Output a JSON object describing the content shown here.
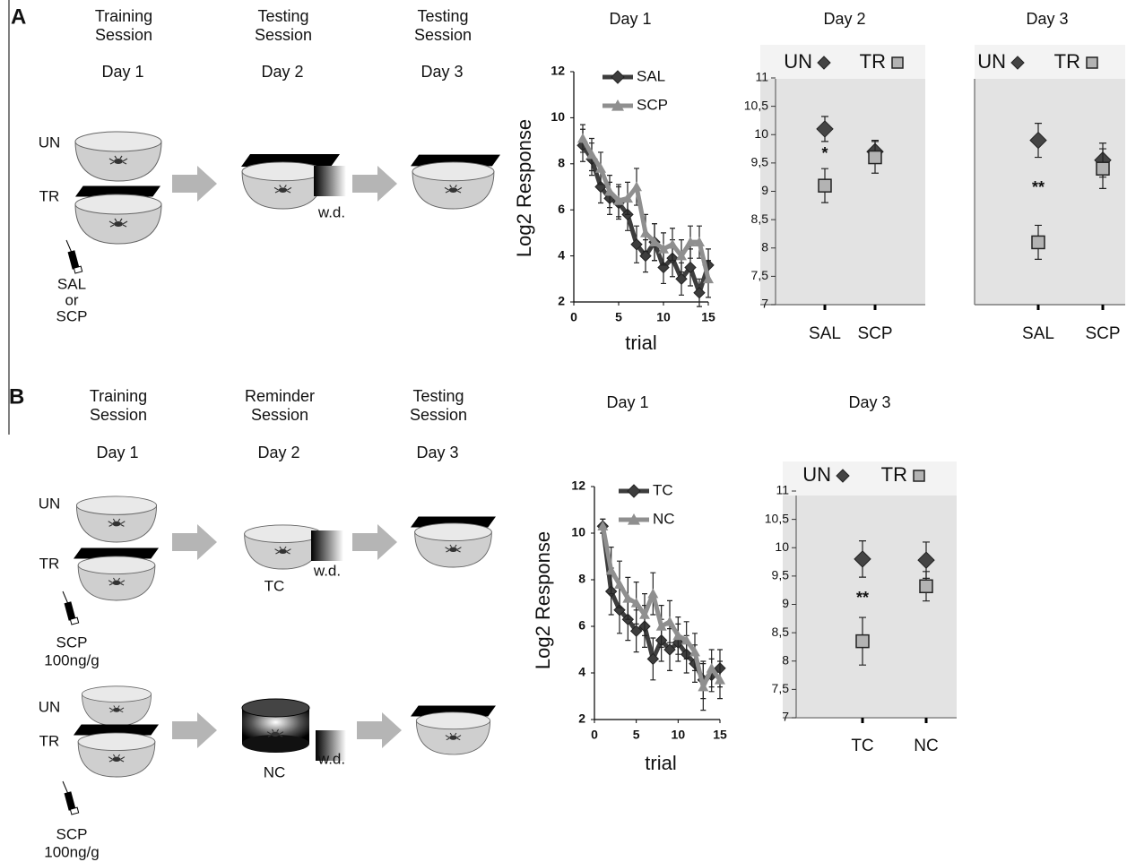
{
  "diagram": {
    "a": {
      "label": "A",
      "columns": [
        {
          "session": [
            "Training",
            "Session"
          ],
          "day": "Day 1"
        },
        {
          "session": [
            "Testing",
            "Session"
          ],
          "day": "Day 2"
        },
        {
          "session": [
            "Testing",
            "Session"
          ],
          "day": "Day 3"
        }
      ],
      "un": "UN",
      "tr": "TR",
      "drug": [
        "SAL",
        "or",
        "SCP"
      ],
      "wd": "w.d."
    },
    "b": {
      "label": "B",
      "columns": [
        {
          "session": [
            "Training",
            "Session"
          ],
          "day": "Day 1"
        },
        {
          "session": [
            "Reminder",
            "Session"
          ],
          "day": "Day 2"
        },
        {
          "session": [
            "Testing",
            "Session"
          ],
          "day": "Day 3"
        }
      ],
      "rows": [
        {
          "un": "UN",
          "tr": "TR",
          "drug": [
            "SCP",
            "100ng/g"
          ],
          "context": "TC",
          "wd": "w.d."
        },
        {
          "un": "UN",
          "tr": "TR",
          "drug": [
            "SCP",
            "100ng/g"
          ],
          "context": "NC",
          "wd": "w.d."
        }
      ]
    }
  },
  "chart_data": [
    {
      "type": "line",
      "title": "Day 1",
      "y_label": "Log2 Response",
      "x_label": "trial",
      "x": [
        1,
        2,
        3,
        4,
        5,
        6,
        7,
        8,
        9,
        10,
        11,
        12,
        13,
        14,
        15
      ],
      "xlim": [
        0,
        15
      ],
      "xticks": [
        0,
        5,
        10,
        15
      ],
      "ylim": [
        2,
        12
      ],
      "yticks": [
        2,
        4,
        6,
        8,
        10,
        12
      ],
      "series": [
        {
          "name": "SAL",
          "color": "#3d3d3d",
          "marker": "diamond",
          "values": [
            8.8,
            8.2,
            7.0,
            6.5,
            6.3,
            5.8,
            4.5,
            4.0,
            4.6,
            3.5,
            3.9,
            3.0,
            3.5,
            2.4,
            3.6
          ],
          "errors": [
            0.7,
            0.7,
            0.7,
            0.7,
            0.7,
            0.7,
            0.8,
            0.7,
            0.8,
            0.7,
            0.8,
            0.7,
            0.8,
            0.6,
            0.7
          ]
        },
        {
          "name": "SCP",
          "color": "#8f8f8f",
          "marker": "triangle",
          "values": [
            9.1,
            8.4,
            7.8,
            6.8,
            6.4,
            6.5,
            7.0,
            5.0,
            4.6,
            4.3,
            4.5,
            4.0,
            4.6,
            4.6,
            3.0
          ],
          "errors": [
            0.6,
            0.7,
            0.7,
            0.7,
            0.7,
            0.7,
            0.8,
            0.8,
            0.8,
            0.7,
            0.7,
            0.7,
            0.7,
            0.7,
            0.8
          ]
        }
      ]
    },
    {
      "type": "dot",
      "title": "Day 2",
      "categories": [
        "SAL",
        "SCP"
      ],
      "ylim": [
        7,
        11
      ],
      "yticks": [
        7,
        {
          "value": 7.5,
          "label": "7,5"
        },
        8,
        {
          "value": 8.5,
          "label": "8,5"
        },
        9,
        {
          "value": 9.5,
          "label": "9,5"
        },
        10,
        {
          "value": 10.5,
          "label": "10,5"
        },
        11
      ],
      "annotation": "*",
      "series": [
        {
          "name": "UN",
          "color": "#444444",
          "marker": "diamond",
          "values": [
            10.1,
            9.7
          ],
          "errors": [
            0.22,
            0.2
          ]
        },
        {
          "name": "TR",
          "color": "#b3b3b3",
          "marker": "square",
          "values": [
            9.1,
            9.6
          ],
          "errors": [
            0.3,
            0.28
          ]
        }
      ]
    },
    {
      "type": "dot",
      "title": "Day 3",
      "categories": [
        "SAL",
        "SCP"
      ],
      "ylim": [
        7,
        11
      ],
      "annotation": "**",
      "series": [
        {
          "name": "UN",
          "color": "#444444",
          "marker": "diamond",
          "values": [
            9.9,
            9.55
          ],
          "errors": [
            0.3,
            0.3
          ]
        },
        {
          "name": "TR",
          "color": "#b3b3b3",
          "marker": "square",
          "values": [
            8.1,
            9.4
          ],
          "errors": [
            0.3,
            0.35
          ]
        }
      ]
    },
    {
      "type": "line",
      "title": "Day 1",
      "y_label": "Log2 Response",
      "x_label": "trial",
      "x": [
        1,
        2,
        3,
        4,
        5,
        6,
        7,
        8,
        9,
        10,
        11,
        12,
        13,
        14,
        15
      ],
      "xlim": [
        0,
        15
      ],
      "xticks": [
        0,
        5,
        10,
        15
      ],
      "ylim": [
        2,
        12
      ],
      "yticks": [
        2,
        4,
        6,
        8,
        10,
        12
      ],
      "series": [
        {
          "name": "TC",
          "color": "#3d3d3d",
          "marker": "diamond",
          "values": [
            10.3,
            7.5,
            6.7,
            6.3,
            5.8,
            6.0,
            4.6,
            5.4,
            5.0,
            5.3,
            4.8,
            4.4,
            3.7,
            3.9,
            4.2
          ],
          "errors": [
            0.3,
            1.0,
            1.0,
            0.9,
            0.9,
            0.9,
            0.9,
            0.9,
            0.9,
            0.8,
            0.8,
            0.8,
            0.8,
            0.7,
            0.8
          ]
        },
        {
          "name": "NC",
          "color": "#8f8f8f",
          "marker": "triangle",
          "values": [
            10.3,
            8.4,
            7.8,
            7.2,
            7.0,
            6.5,
            7.4,
            6.0,
            6.2,
            5.6,
            5.4,
            4.9,
            3.4,
            4.2,
            3.7
          ],
          "errors": [
            0.3,
            1.0,
            1.0,
            0.9,
            0.9,
            0.9,
            0.9,
            0.9,
            0.9,
            0.8,
            0.8,
            0.8,
            1.0,
            0.8,
            0.8
          ]
        }
      ]
    },
    {
      "type": "dot",
      "title": "Day 3",
      "categories": [
        "TC",
        "NC"
      ],
      "ylim": [
        7,
        11
      ],
      "yticks": [
        7,
        {
          "value": 7.5,
          "label": "7,5"
        },
        8,
        {
          "value": 8.5,
          "label": "8,5"
        },
        9,
        {
          "value": 9.5,
          "label": "9,5"
        },
        10,
        {
          "value": 10.5,
          "label": "10,5"
        },
        11
      ],
      "annotation": "**",
      "series": [
        {
          "name": "UN",
          "color": "#444444",
          "marker": "diamond",
          "values": [
            9.8,
            9.78
          ],
          "errors": [
            0.32,
            0.32
          ]
        },
        {
          "name": "TR",
          "color": "#b3b3b3",
          "marker": "square",
          "values": [
            8.35,
            9.32
          ],
          "errors": [
            0.42,
            0.26
          ]
        }
      ]
    }
  ]
}
